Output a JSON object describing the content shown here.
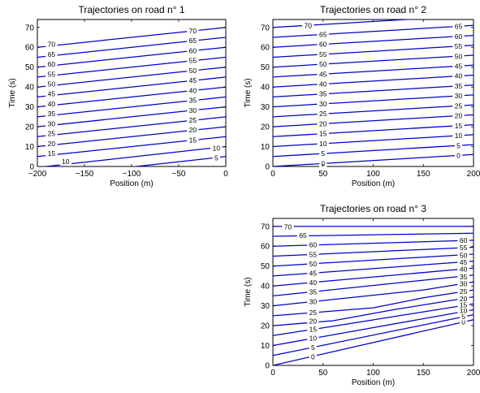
{
  "chart_data": [
    {
      "type": "line",
      "title": "Trajectories on road n° 1",
      "xlabel": "Position (m)",
      "ylabel": "Time (s)",
      "xlim": [
        -200,
        0
      ],
      "ylim": [
        0,
        74
      ],
      "xticks": [
        "−200",
        "−150",
        "−100",
        "−50",
        "0"
      ],
      "yticks": [
        "0",
        "10",
        "20",
        "30",
        "40",
        "50",
        "60",
        "70"
      ],
      "grid": false,
      "series": [
        {
          "label": "5",
          "x": [
            -200,
            0
          ],
          "y": [
            -5.5,
            5
          ]
        },
        {
          "label": "10",
          "x": [
            -200,
            0
          ],
          "y": [
            -0.5,
            10
          ]
        },
        {
          "label": "15",
          "x": [
            -200,
            0
          ],
          "y": [
            5,
            15
          ]
        },
        {
          "label": "20",
          "x": [
            -200,
            0
          ],
          "y": [
            10,
            20
          ]
        },
        {
          "label": "25",
          "x": [
            -200,
            0
          ],
          "y": [
            15,
            25
          ]
        },
        {
          "label": "30",
          "x": [
            -200,
            0
          ],
          "y": [
            20,
            30
          ]
        },
        {
          "label": "35",
          "x": [
            -200,
            0
          ],
          "y": [
            25,
            35
          ]
        },
        {
          "label": "40",
          "x": [
            -200,
            0
          ],
          "y": [
            30,
            40
          ]
        },
        {
          "label": "45",
          "x": [
            -200,
            0
          ],
          "y": [
            35,
            45
          ]
        },
        {
          "label": "50",
          "x": [
            -200,
            0
          ],
          "y": [
            40,
            50
          ]
        },
        {
          "label": "55",
          "x": [
            -200,
            0
          ],
          "y": [
            45,
            55
          ]
        },
        {
          "label": "60",
          "x": [
            -200,
            0
          ],
          "y": [
            50,
            60
          ]
        },
        {
          "label": "65",
          "x": [
            -200,
            0
          ],
          "y": [
            55,
            65
          ]
        },
        {
          "label": "70",
          "x": [
            -200,
            0
          ],
          "y": [
            60,
            70
          ]
        }
      ],
      "contour_labels": [
        {
          "text": "10",
          "x": -170,
          "y": 2.5
        },
        {
          "text": "15",
          "x": -185,
          "y": 6.5
        },
        {
          "text": "20",
          "x": -185,
          "y": 11.5
        },
        {
          "text": "25",
          "x": -185,
          "y": 16.5
        },
        {
          "text": "30",
          "x": -185,
          "y": 21.5
        },
        {
          "text": "35",
          "x": -185,
          "y": 26.5
        },
        {
          "text": "40",
          "x": -185,
          "y": 31.5
        },
        {
          "text": "45",
          "x": -185,
          "y": 36.5
        },
        {
          "text": "50",
          "x": -185,
          "y": 41.5
        },
        {
          "text": "55",
          "x": -185,
          "y": 46.5
        },
        {
          "text": "60",
          "x": -185,
          "y": 51.5
        },
        {
          "text": "65",
          "x": -185,
          "y": 56.5
        },
        {
          "text": "70",
          "x": -185,
          "y": 61.5
        },
        {
          "text": "5",
          "x": -10,
          "y": 4.3
        },
        {
          "text": "10",
          "x": -10,
          "y": 9.3
        },
        {
          "text": "15",
          "x": -35,
          "y": 13.3
        },
        {
          "text": "20",
          "x": -35,
          "y": 18.3
        },
        {
          "text": "25",
          "x": -35,
          "y": 23.3
        },
        {
          "text": "30",
          "x": -35,
          "y": 28.3
        },
        {
          "text": "35",
          "x": -35,
          "y": 33.3
        },
        {
          "text": "40",
          "x": -35,
          "y": 38.3
        },
        {
          "text": "45",
          "x": -35,
          "y": 43.3
        },
        {
          "text": "50",
          "x": -35,
          "y": 48.3
        },
        {
          "text": "55",
          "x": -35,
          "y": 53.3
        },
        {
          "text": "60",
          "x": -35,
          "y": 58.3
        },
        {
          "text": "65",
          "x": -35,
          "y": 63.3
        },
        {
          "text": "70",
          "x": -35,
          "y": 68.3
        }
      ]
    },
    {
      "type": "line",
      "title": "Trajectories on road n° 2",
      "xlabel": "Position (m)",
      "ylabel": "Time (s)",
      "xlim": [
        0,
        200
      ],
      "ylim": [
        0,
        74
      ],
      "xticks": [
        "0",
        "50",
        "100",
        "150",
        "200"
      ],
      "yticks": [
        "0",
        "10",
        "20",
        "30",
        "40",
        "50",
        "60",
        "70"
      ],
      "grid": false,
      "series": [
        {
          "label": "0",
          "x": [
            0,
            200
          ],
          "y": [
            0,
            6
          ]
        },
        {
          "label": "5",
          "x": [
            0,
            200
          ],
          "y": [
            5,
            11
          ]
        },
        {
          "label": "10",
          "x": [
            0,
            200
          ],
          "y": [
            10,
            16
          ]
        },
        {
          "label": "15",
          "x": [
            0,
            200
          ],
          "y": [
            15,
            21
          ]
        },
        {
          "label": "20",
          "x": [
            0,
            200
          ],
          "y": [
            20,
            26
          ]
        },
        {
          "label": "25",
          "x": [
            0,
            200
          ],
          "y": [
            25,
            31
          ]
        },
        {
          "label": "30",
          "x": [
            0,
            200
          ],
          "y": [
            30,
            36
          ]
        },
        {
          "label": "35",
          "x": [
            0,
            200
          ],
          "y": [
            35,
            41
          ]
        },
        {
          "label": "40",
          "x": [
            0,
            200
          ],
          "y": [
            40,
            46
          ]
        },
        {
          "label": "45",
          "x": [
            0,
            200
          ],
          "y": [
            45,
            51
          ]
        },
        {
          "label": "50",
          "x": [
            0,
            200
          ],
          "y": [
            50,
            56
          ]
        },
        {
          "label": "55",
          "x": [
            0,
            200
          ],
          "y": [
            55,
            61
          ]
        },
        {
          "label": "60",
          "x": [
            0,
            200
          ],
          "y": [
            60,
            66
          ]
        },
        {
          "label": "65",
          "x": [
            0,
            200
          ],
          "y": [
            65,
            71
          ]
        },
        {
          "label": "70",
          "x": [
            0,
            200
          ],
          "y": [
            70,
            76
          ]
        }
      ],
      "contour_labels": [
        {
          "text": "0",
          "x": 50,
          "y": 1.5
        },
        {
          "text": "5",
          "x": 50,
          "y": 6.5
        },
        {
          "text": "10",
          "x": 50,
          "y": 11.5
        },
        {
          "text": "15",
          "x": 50,
          "y": 16.5
        },
        {
          "text": "20",
          "x": 50,
          "y": 21.5
        },
        {
          "text": "25",
          "x": 50,
          "y": 26.5
        },
        {
          "text": "30",
          "x": 50,
          "y": 31.5
        },
        {
          "text": "35",
          "x": 50,
          "y": 36.5
        },
        {
          "text": "40",
          "x": 50,
          "y": 41.5
        },
        {
          "text": "45",
          "x": 50,
          "y": 46.5
        },
        {
          "text": "50",
          "x": 50,
          "y": 51.5
        },
        {
          "text": "55",
          "x": 50,
          "y": 56.5
        },
        {
          "text": "60",
          "x": 50,
          "y": 61.5
        },
        {
          "text": "65",
          "x": 50,
          "y": 66.5
        },
        {
          "text": "70",
          "x": 35,
          "y": 71
        },
        {
          "text": "0",
          "x": 185,
          "y": 5.5
        },
        {
          "text": "5",
          "x": 185,
          "y": 10.5
        },
        {
          "text": "10",
          "x": 185,
          "y": 15.5
        },
        {
          "text": "15",
          "x": 185,
          "y": 20.5
        },
        {
          "text": "20",
          "x": 185,
          "y": 25.5
        },
        {
          "text": "25",
          "x": 185,
          "y": 30.5
        },
        {
          "text": "30",
          "x": 185,
          "y": 35.5
        },
        {
          "text": "35",
          "x": 185,
          "y": 40.5
        },
        {
          "text": "40",
          "x": 185,
          "y": 45.5
        },
        {
          "text": "45",
          "x": 185,
          "y": 50.5
        },
        {
          "text": "50",
          "x": 185,
          "y": 55.5
        },
        {
          "text": "55",
          "x": 185,
          "y": 60.5
        },
        {
          "text": "60",
          "x": 185,
          "y": 65.5
        },
        {
          "text": "65",
          "x": 185,
          "y": 70.5
        }
      ]
    },
    {
      "type": "line",
      "title": "Trajectories on road n° 3",
      "xlabel": "Position (m)",
      "ylabel": "Time (s)",
      "xlim": [
        0,
        200
      ],
      "ylim": [
        0,
        74
      ],
      "xticks": [
        "0",
        "50",
        "100",
        "150",
        "200"
      ],
      "yticks": [
        "0",
        "10",
        "20",
        "30",
        "40",
        "50",
        "60",
        "70"
      ],
      "grid": false,
      "series": [
        {
          "label": "0",
          "x": [
            0,
            200
          ],
          "y": [
            0,
            23
          ]
        },
        {
          "label": "5",
          "x": [
            0,
            200
          ],
          "y": [
            5,
            25.5
          ]
        },
        {
          "label": "10",
          "x": [
            0,
            100,
            200
          ],
          "y": [
            10,
            19,
            28
          ]
        },
        {
          "label": "15",
          "x": [
            0,
            70,
            200
          ],
          "y": [
            15,
            20.5,
            31
          ]
        },
        {
          "label": "20",
          "x": [
            0,
            60,
            120,
            200
          ],
          "y": [
            20,
            22.5,
            28,
            34.5
          ]
        },
        {
          "label": "25",
          "x": [
            0,
            100,
            150,
            200
          ],
          "y": [
            25,
            29,
            34,
            38
          ]
        },
        {
          "label": "30",
          "x": [
            0,
            150,
            200
          ],
          "y": [
            30,
            38,
            42
          ]
        },
        {
          "label": "35",
          "x": [
            0,
            200
          ],
          "y": [
            35,
            45.5
          ]
        },
        {
          "label": "40",
          "x": [
            0,
            200
          ],
          "y": [
            40,
            49
          ]
        },
        {
          "label": "45",
          "x": [
            0,
            200
          ],
          "y": [
            45,
            52.5
          ]
        },
        {
          "label": "50",
          "x": [
            0,
            200
          ],
          "y": [
            50,
            56
          ]
        },
        {
          "label": "55",
          "x": [
            0,
            200
          ],
          "y": [
            55,
            59.5
          ]
        },
        {
          "label": "60",
          "x": [
            0,
            200
          ],
          "y": [
            60,
            63
          ]
        },
        {
          "label": "65",
          "x": [
            0,
            200
          ],
          "y": [
            65,
            66.5
          ]
        },
        {
          "label": "70",
          "x": [
            0,
            200
          ],
          "y": [
            70,
            70
          ]
        }
      ],
      "contour_labels": [
        {
          "text": "0",
          "x": 40,
          "y": 4.3
        },
        {
          "text": "5",
          "x": 40,
          "y": 9
        },
        {
          "text": "10",
          "x": 40,
          "y": 13.6
        },
        {
          "text": "15",
          "x": 40,
          "y": 18.2
        },
        {
          "text": "20",
          "x": 40,
          "y": 22.3
        },
        {
          "text": "25",
          "x": 40,
          "y": 26.6
        },
        {
          "text": "30",
          "x": 40,
          "y": 32.1
        },
        {
          "text": "35",
          "x": 40,
          "y": 37.1
        },
        {
          "text": "40",
          "x": 40,
          "y": 41.8
        },
        {
          "text": "45",
          "x": 40,
          "y": 46.5
        },
        {
          "text": "50",
          "x": 40,
          "y": 51.2
        },
        {
          "text": "55",
          "x": 40,
          "y": 55.9
        },
        {
          "text": "60",
          "x": 40,
          "y": 60.8
        },
        {
          "text": "65",
          "x": 30,
          "y": 65.5
        },
        {
          "text": "70",
          "x": 15,
          "y": 69.8
        },
        {
          "text": "0",
          "x": 190,
          "y": 21.9
        },
        {
          "text": "5",
          "x": 190,
          "y": 24.5
        },
        {
          "text": "10",
          "x": 190,
          "y": 27.5
        },
        {
          "text": "15",
          "x": 190,
          "y": 30.5
        },
        {
          "text": "20",
          "x": 190,
          "y": 33.5
        },
        {
          "text": "25",
          "x": 190,
          "y": 37.2
        },
        {
          "text": "30",
          "x": 190,
          "y": 41
        },
        {
          "text": "35",
          "x": 190,
          "y": 44.5
        },
        {
          "text": "40",
          "x": 190,
          "y": 48.5
        },
        {
          "text": "45",
          "x": 190,
          "y": 52
        },
        {
          "text": "50",
          "x": 190,
          "y": 55.5
        },
        {
          "text": "55",
          "x": 190,
          "y": 59.3
        },
        {
          "text": "60",
          "x": 190,
          "y": 63
        }
      ]
    }
  ]
}
